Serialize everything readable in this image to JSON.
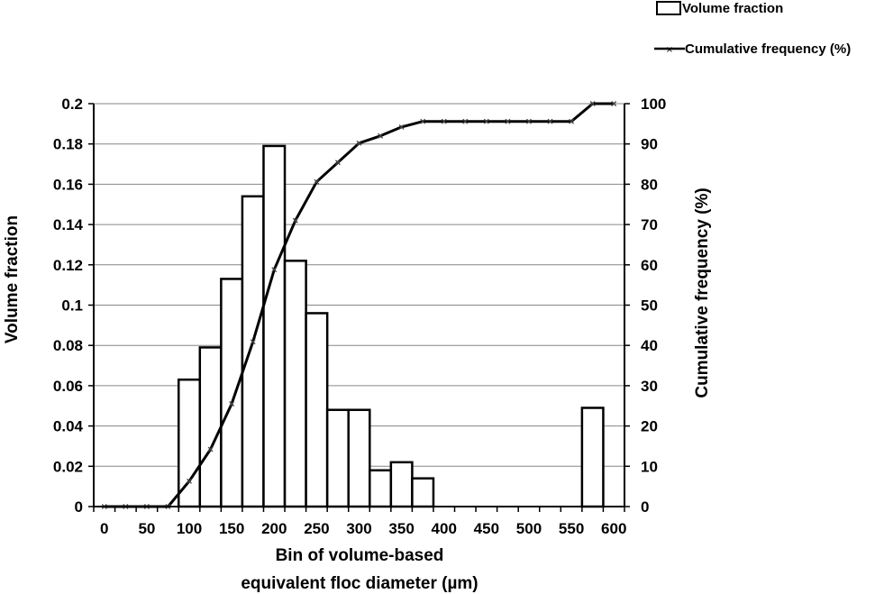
{
  "chart_data": {
    "type": "bar+line",
    "x_ticks": [
      0,
      50,
      100,
      150,
      200,
      250,
      300,
      350,
      400,
      450,
      500,
      550,
      600
    ],
    "xlim": [
      -12.5,
      612.5
    ],
    "ylim_left": [
      0,
      0.2
    ],
    "y_ticks_left": [
      "0",
      "0.02",
      "0.04",
      "0.06",
      "0.08",
      "0.1",
      "0.12",
      "0.14",
      "0.16",
      "0.18",
      "0.2"
    ],
    "ylim_right": [
      0,
      100
    ],
    "y_ticks_right": [
      "0",
      "10",
      "20",
      "30",
      "40",
      "50",
      "60",
      "70",
      "80",
      "90",
      "100"
    ],
    "ylabel_left": "Volume fraction",
    "ylabel_right": "Cumulative frequency (%)",
    "xlabel_line1": "Bin of volume-based",
    "xlabel_line2": "equivalent floc diameter (µm)",
    "grid": "horizontal",
    "legend_position": "top-right",
    "series": [
      {
        "name": "Volume fraction",
        "type": "bar",
        "axis": "left",
        "x": [
          100,
          125,
          150,
          175,
          200,
          225,
          250,
          275,
          300,
          325,
          350,
          375,
          575
        ],
        "values": [
          0.063,
          0.079,
          0.113,
          0.154,
          0.179,
          0.122,
          0.096,
          0.048,
          0.048,
          0.018,
          0.022,
          0.014,
          0.049
        ]
      },
      {
        "name": "Cumulative frequency (%)",
        "type": "line",
        "axis": "right",
        "x": [
          0,
          25,
          50,
          75,
          100,
          125,
          150,
          175,
          200,
          225,
          250,
          275,
          300,
          325,
          350,
          375,
          400,
          425,
          450,
          475,
          500,
          525,
          550,
          575,
          600
        ],
        "values": [
          0,
          0,
          0,
          0,
          6.3,
          14.2,
          25.5,
          40.9,
          58.8,
          71,
          80.6,
          85.4,
          90.2,
          92,
          94.2,
          95.6,
          95.6,
          95.6,
          95.6,
          95.6,
          95.6,
          95.6,
          95.6,
          100,
          100
        ]
      }
    ],
    "colors": {
      "bar_fill": "#ffffff",
      "stroke": "#000000",
      "grid": "#868686"
    }
  }
}
